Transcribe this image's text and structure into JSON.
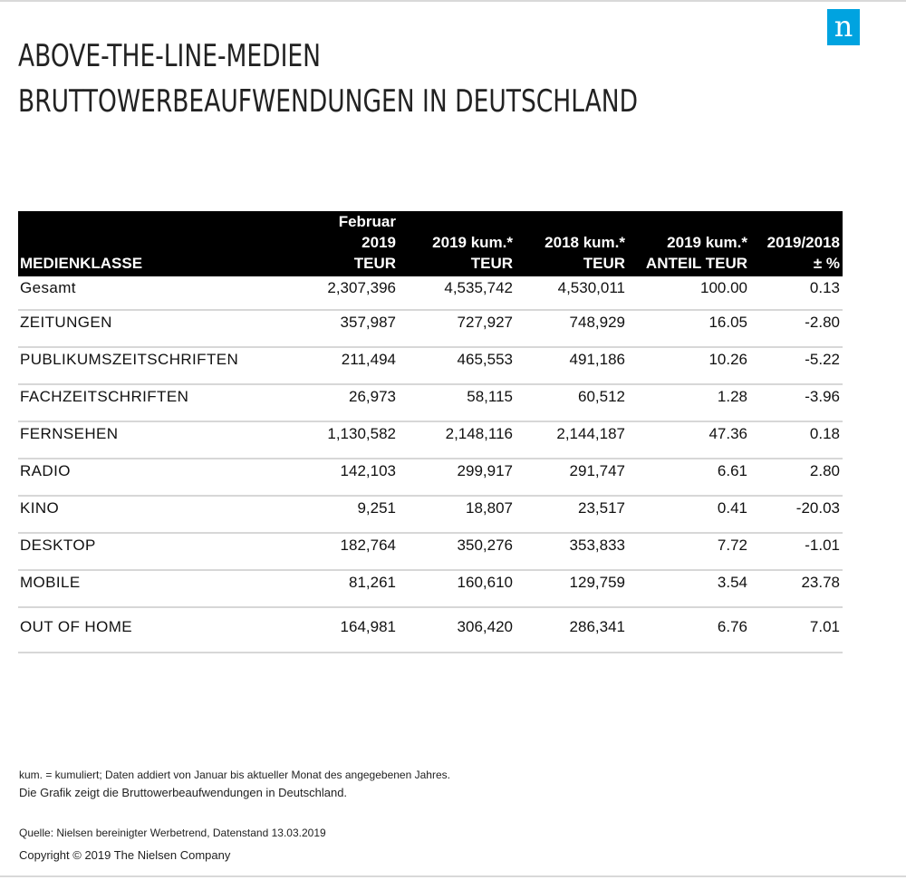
{
  "header": {
    "title_line1": "ABOVE-THE-LINE-MEDIEN",
    "title_line2": "BRUTTOWERBEAUFWENDUNGEN IN DEUTSCHLAND",
    "logo_letter": "n"
  },
  "colors": {
    "logo_blue": "#00a3e0",
    "header_bg": "#000000",
    "row_line": "#d7d7d7"
  },
  "table": {
    "columns": [
      {
        "lines": [
          "MEDIENKLASSE"
        ]
      },
      {
        "lines": [
          "Februar",
          "2019",
          "TEUR"
        ]
      },
      {
        "lines": [
          "2019 kum.*",
          "TEUR"
        ]
      },
      {
        "lines": [
          "2018 kum.*",
          "TEUR"
        ]
      },
      {
        "lines": [
          "2019 kum.*",
          "ANTEIL TEUR"
        ]
      },
      {
        "lines": [
          "2019/2018",
          "± %"
        ]
      }
    ],
    "rows": [
      {
        "name": "Gesamt",
        "feb2019": "2,307,396",
        "kum2019": "4,535,742",
        "kum2018": "4,530,011",
        "anteil": "100.00",
        "change": "0.13"
      },
      {
        "name": "ZEITUNGEN",
        "feb2019": "357,987",
        "kum2019": "727,927",
        "kum2018": "748,929",
        "anteil": "16.05",
        "change": "-2.80"
      },
      {
        "name": "PUBLIKUMSZEITSCHRIFTEN",
        "feb2019": "211,494",
        "kum2019": "465,553",
        "kum2018": "491,186",
        "anteil": "10.26",
        "change": "-5.22"
      },
      {
        "name": "FACHZEITSCHRIFTEN",
        "feb2019": "26,973",
        "kum2019": "58,115",
        "kum2018": "60,512",
        "anteil": "1.28",
        "change": "-3.96"
      },
      {
        "name": "FERNSEHEN",
        "feb2019": "1,130,582",
        "kum2019": "2,148,116",
        "kum2018": "2,144,187",
        "anteil": "47.36",
        "change": "0.18"
      },
      {
        "name": "RADIO",
        "feb2019": "142,103",
        "kum2019": "299,917",
        "kum2018": "291,747",
        "anteil": "6.61",
        "change": "2.80"
      },
      {
        "name": "KINO",
        "feb2019": "9,251",
        "kum2019": "18,807",
        "kum2018": "23,517",
        "anteil": "0.41",
        "change": "-20.03"
      },
      {
        "name": "DESKTOP",
        "feb2019": "182,764",
        "kum2019": "350,276",
        "kum2018": "353,833",
        "anteil": "7.72",
        "change": "-1.01"
      },
      {
        "name": "MOBILE",
        "feb2019": "81,261",
        "kum2019": "160,610",
        "kum2018": "129,759",
        "anteil": "3.54",
        "change": "23.78"
      },
      {
        "name": "OUT OF HOME",
        "feb2019": "164,981",
        "kum2019": "306,420",
        "kum2018": "286,341",
        "anteil": "6.76",
        "change": "7.01"
      }
    ]
  },
  "footer": {
    "note1": "kum. = kumuliert; Daten addiert von Januar bis aktueller Monat des angegebenen Jahres.",
    "note2": "Die Grafik zeigt die Bruttowerbeaufwendungen in Deutschland.",
    "source": "Quelle: Nielsen bereinigter Werbetrend, Datenstand 13.03.2019",
    "copyright": "Copyright © 2019 The Nielsen Company"
  }
}
